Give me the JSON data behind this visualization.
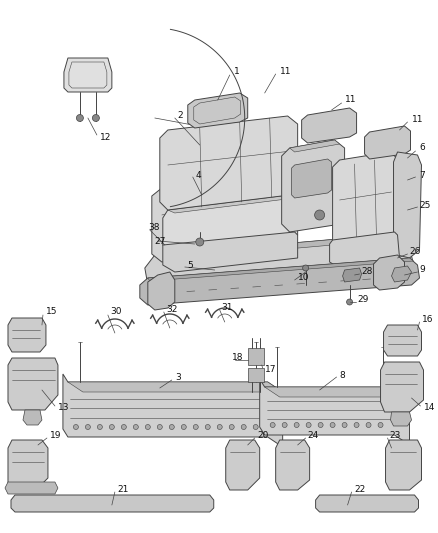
{
  "background_color": "#ffffff",
  "fig_width": 4.38,
  "fig_height": 5.33,
  "dpi": 100,
  "line_color": "#444444",
  "label_color": "#111111",
  "label_fontsize": 6.5,
  "lw_main": 0.7,
  "lw_thin": 0.5,
  "part_fill": "#e8e8e8",
  "part_fill_dark": "#c8c8c8",
  "part_fill_med": "#d8d8d8"
}
